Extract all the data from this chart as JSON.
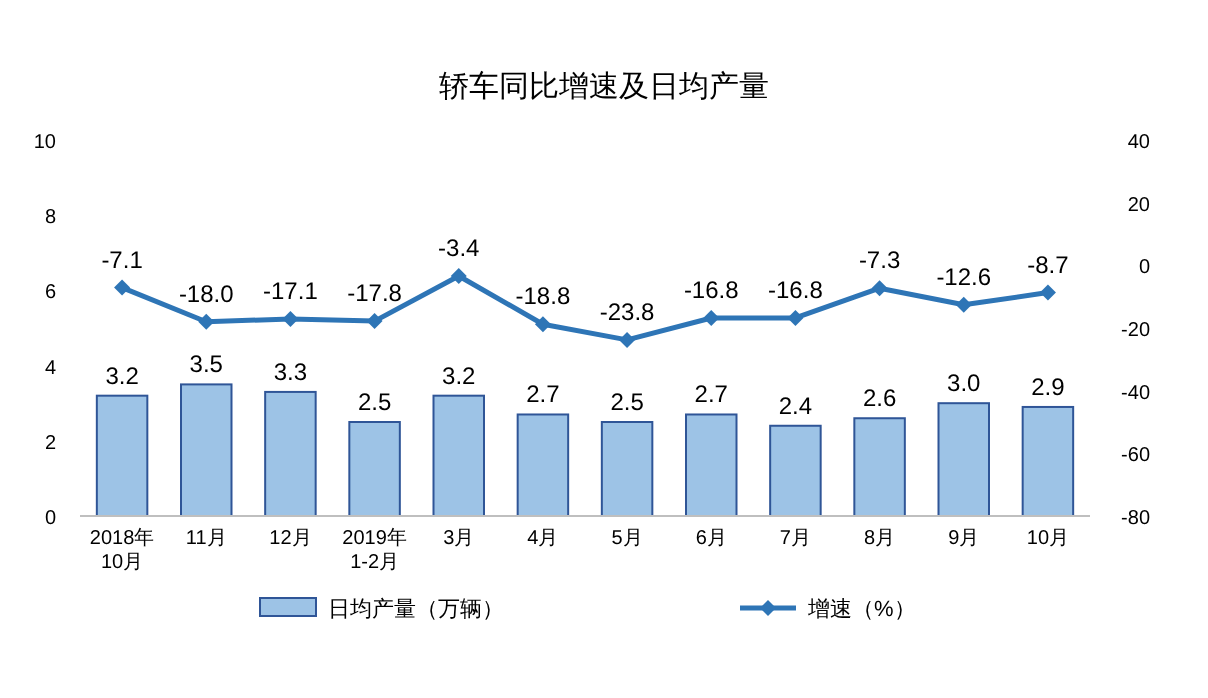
{
  "chart_data": {
    "type": "bar",
    "title": "轿车同比增速及日均产量",
    "categories": [
      "2018年\n10月",
      "11月",
      "12月",
      "2019年\n1-2月",
      "3月",
      "4月",
      "5月",
      "6月",
      "7月",
      "8月",
      "9月",
      "10月"
    ],
    "series": [
      {
        "name": "日均产量（万辆）",
        "color": "#9dc3e6",
        "values": [
          3.2,
          3.5,
          3.3,
          2.5,
          3.2,
          2.7,
          2.5,
          2.7,
          2.4,
          2.6,
          3.0,
          2.9
        ],
        "value_labels": [
          "3.2",
          "3.5",
          "3.3",
          "2.5",
          "3.2",
          "2.7",
          "2.5",
          "2.7",
          "2.4",
          "2.6",
          "3.0",
          "2.9"
        ]
      },
      {
        "name": "增速（%）",
        "type": "line",
        "axis": "y2",
        "color": "#2e75b6",
        "marker": "diamond",
        "values": [
          -7.1,
          -18.0,
          -17.1,
          -17.8,
          -3.4,
          -18.8,
          -23.8,
          -16.8,
          -16.8,
          -7.3,
          -12.6,
          -8.7
        ],
        "value_labels": [
          "-7.1",
          "-18.0",
          "-17.1",
          "-17.8",
          "-3.4",
          "-18.8",
          "-23.8",
          "-16.8",
          "-16.8",
          "-7.3",
          "-12.6",
          "-8.7"
        ]
      }
    ],
    "ylim": [
      0,
      10
    ],
    "yticks": [
      0,
      2,
      4,
      6,
      8,
      10
    ],
    "y2lim": [
      -80,
      40
    ],
    "y2ticks": [
      -80,
      -60,
      -40,
      -20,
      0,
      20,
      40
    ],
    "legend": "bottom"
  }
}
